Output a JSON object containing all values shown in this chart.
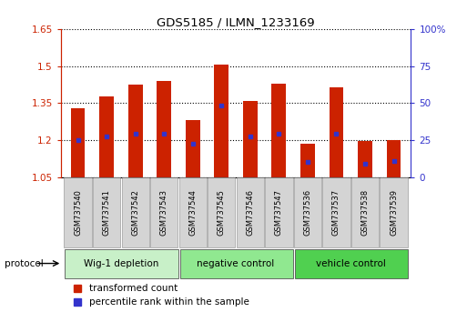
{
  "title": "GDS5185 / ILMN_1233169",
  "samples": [
    "GSM737540",
    "GSM737541",
    "GSM737542",
    "GSM737543",
    "GSM737544",
    "GSM737545",
    "GSM737546",
    "GSM737547",
    "GSM737536",
    "GSM737537",
    "GSM737538",
    "GSM737539"
  ],
  "bar_tops": [
    1.33,
    1.375,
    1.425,
    1.44,
    1.28,
    1.505,
    1.36,
    1.43,
    1.185,
    1.415,
    1.195,
    1.2
  ],
  "bar_bottom": 1.05,
  "blue_markers": [
    1.2,
    1.215,
    1.225,
    1.225,
    1.185,
    1.34,
    1.215,
    1.225,
    1.11,
    1.225,
    1.105,
    1.115
  ],
  "ylim": [
    1.05,
    1.65
  ],
  "yticks_left": [
    1.05,
    1.2,
    1.35,
    1.5,
    1.65
  ],
  "yticks_right": [
    0,
    25,
    50,
    75,
    100
  ],
  "ytick_labels_left": [
    "1.05",
    "1.2",
    "1.35",
    "1.5",
    "1.65"
  ],
  "ytick_labels_right": [
    "0",
    "25",
    "50",
    "75",
    "100%"
  ],
  "groups": [
    {
      "label": "Wig-1 depletion",
      "start": 0,
      "end": 3,
      "color": "#c8f0c8"
    },
    {
      "label": "negative control",
      "start": 4,
      "end": 7,
      "color": "#90e890"
    },
    {
      "label": "vehicle control",
      "start": 8,
      "end": 11,
      "color": "#50d050"
    }
  ],
  "bar_color": "#cc2200",
  "blue_color": "#3333cc",
  "left_tick_color": "#cc2200",
  "right_tick_color": "#3333cc",
  "bar_width": 0.5,
  "protocol_label": "protocol",
  "legend_items": [
    {
      "color": "#cc2200",
      "label": "transformed count"
    },
    {
      "color": "#3333cc",
      "label": "percentile rank within the sample"
    }
  ]
}
